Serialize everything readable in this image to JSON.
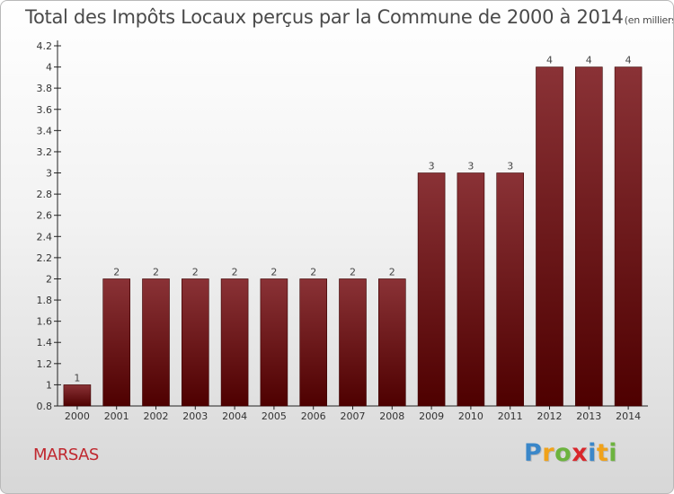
{
  "chart_data": {
    "type": "bar",
    "title": "Total des Impôts Locaux perçus par la Commune de 2000 à 2014",
    "unit_note": "(en milliers d'€)",
    "categories": [
      "2000",
      "2001",
      "2002",
      "2003",
      "2004",
      "2005",
      "2006",
      "2007",
      "2008",
      "2009",
      "2010",
      "2011",
      "2012",
      "2013",
      "2014"
    ],
    "values": [
      1,
      2,
      2,
      2,
      2,
      2,
      2,
      2,
      2,
      3,
      3,
      3,
      4,
      4,
      4
    ],
    "data_labels": [
      "1",
      "2",
      "2",
      "2",
      "2",
      "2",
      "2",
      "2",
      "2",
      "3",
      "3",
      "3",
      "4",
      "4",
      "4"
    ],
    "ylim": [
      0.8,
      4.2
    ],
    "yticks": [
      0.8,
      1,
      1.2,
      1.4,
      1.6,
      1.8,
      2,
      2.2,
      2.4,
      2.6,
      2.8,
      3,
      3.2,
      3.4,
      3.6,
      3.8,
      4,
      4.2
    ],
    "ytick_labels": [
      "0.8",
      "1",
      "1.2",
      "1.4",
      "1.6",
      "1.8",
      "2",
      "2.2",
      "2.4",
      "2.6",
      "2.8",
      "3",
      "3.2",
      "3.4",
      "3.6",
      "3.8",
      "4",
      "4.2"
    ],
    "xlabel": "",
    "ylabel": "",
    "grid": false,
    "colors": {
      "bar_light": "#8a3236",
      "bar_dark": "#4e0000",
      "bar_stroke": "#3a0000"
    }
  },
  "commune_name": "MARSAS",
  "logo": {
    "letters": [
      "P",
      "r",
      "o",
      "x",
      "i",
      "t",
      "i"
    ],
    "colors": [
      "#3a87c9",
      "#f0a21a",
      "#6cb33e",
      "#d9262b",
      "#3a87c9",
      "#f0a21a",
      "#6cb33e"
    ]
  }
}
